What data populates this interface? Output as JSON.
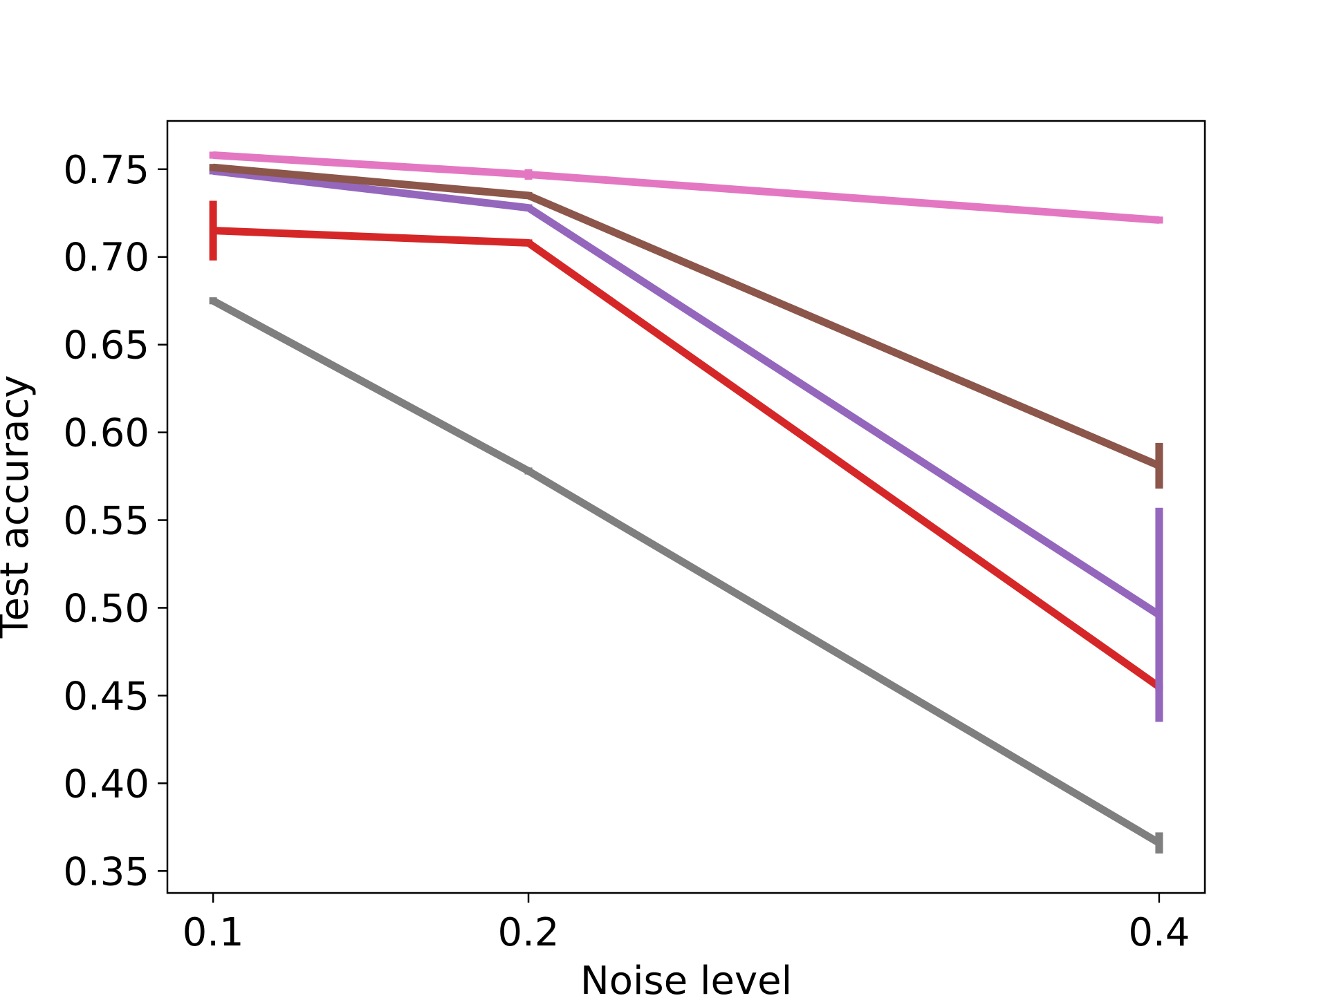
{
  "chart_data": {
    "type": "line",
    "title": "",
    "xlabel": "Noise level",
    "ylabel": "Test accuracy",
    "x": [
      0.1,
      0.2,
      0.4
    ],
    "x_ticks": [
      0.1,
      0.2,
      0.4
    ],
    "x_tick_labels": [
      "0.1",
      "0.2",
      "0.4"
    ],
    "xlim": [
      0.0855,
      0.4145
    ],
    "ylim": [
      0.3375,
      0.7775
    ],
    "y_ticks": [
      0.35,
      0.4,
      0.45,
      0.5,
      0.55,
      0.6,
      0.65,
      0.7,
      0.75
    ],
    "y_tick_labels": [
      "0.35",
      "0.40",
      "0.45",
      "0.50",
      "0.55",
      "0.60",
      "0.65",
      "0.70",
      "0.75"
    ],
    "grid": false,
    "legend": "none",
    "series": [
      {
        "color": "#7f7f7f",
        "values": [
          0.675,
          0.578,
          0.366
        ],
        "errors": [
          0.002,
          0.002,
          0.006
        ]
      },
      {
        "color": "#d62728",
        "values": [
          0.715,
          0.708,
          0.455
        ],
        "errors": [
          0.017,
          0.002,
          0.002
        ]
      },
      {
        "color": "#9467bd",
        "values": [
          0.749,
          0.728,
          0.496
        ],
        "errors": [
          0.002,
          0.002,
          0.061
        ]
      },
      {
        "color": "#8c564b",
        "values": [
          0.751,
          0.735,
          0.581
        ],
        "errors": [
          0.002,
          0.002,
          0.013
        ]
      },
      {
        "color": "#e377c2",
        "values": [
          0.758,
          0.747,
          0.721
        ],
        "errors": [
          0.002,
          0.003,
          0.002
        ]
      }
    ]
  }
}
